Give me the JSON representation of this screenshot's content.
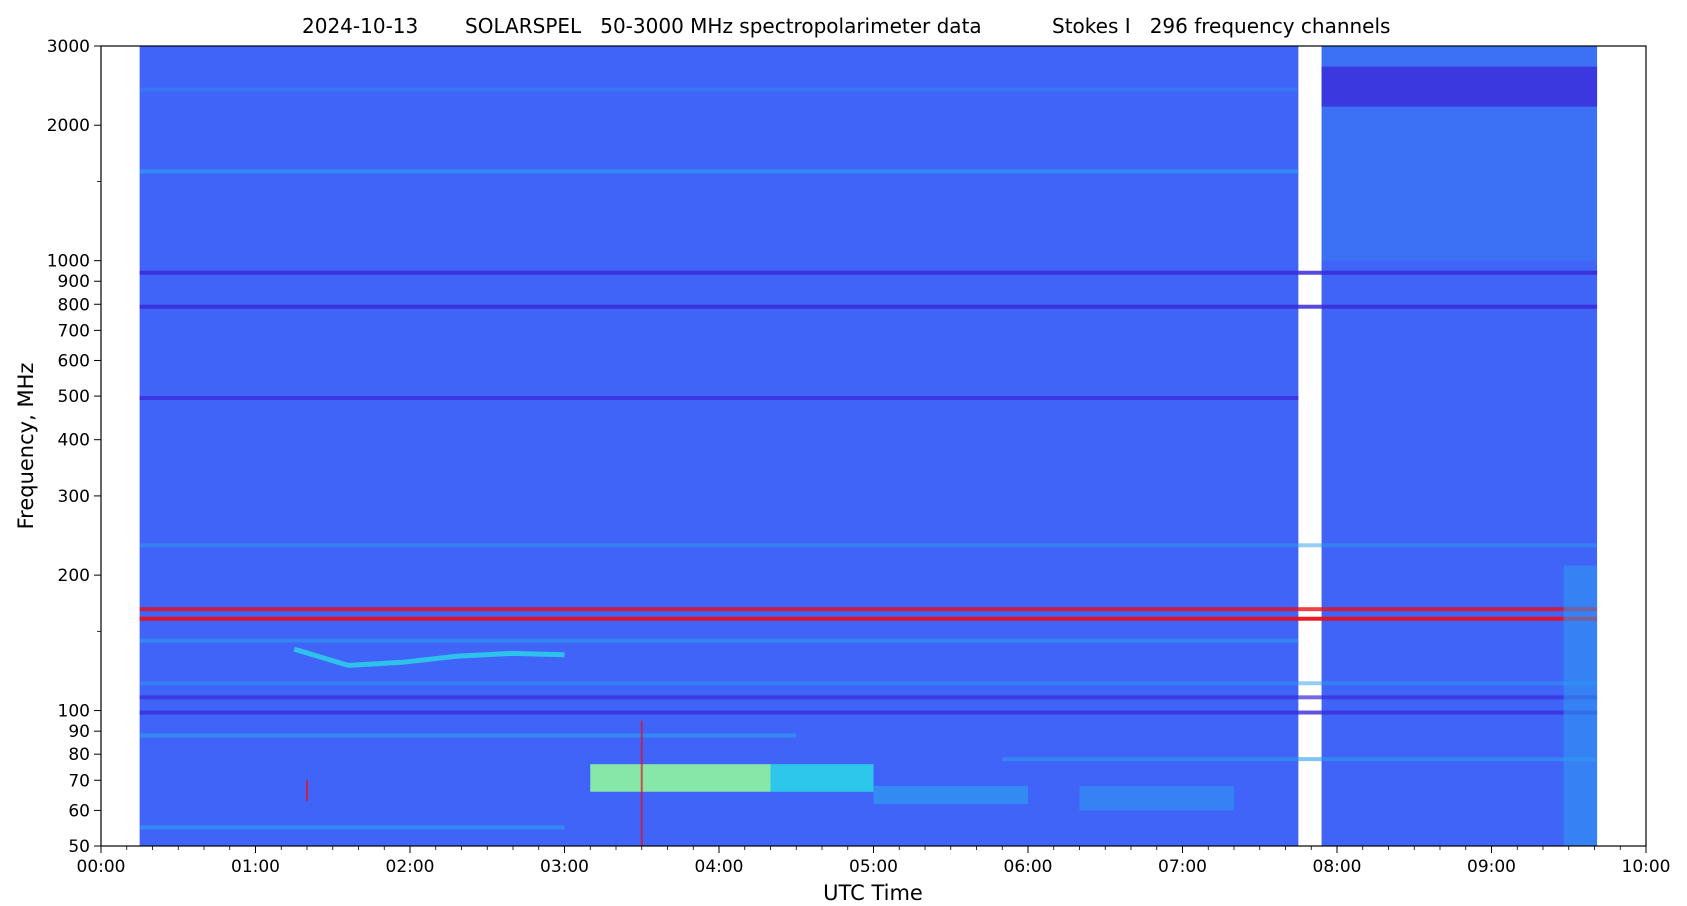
{
  "chart_data": {
    "type": "heatmap",
    "title_parts": [
      "2024-10-13",
      "SOLARSPEL   50-3000 MHz spectropolarimeter data",
      "Stokes I   296 frequency channels"
    ],
    "date": "2024-10-13",
    "instrument": "SOLARSPEL",
    "frequency_range_label": "50-3000 MHz spectropolarimeter data",
    "stokes": "Stokes I",
    "channels_label": "296 frequency channels",
    "xlabel": "UTC Time",
    "ylabel": "Frequency, MHz",
    "x_ticks": [
      "00:00",
      "01:00",
      "02:00",
      "03:00",
      "04:00",
      "05:00",
      "06:00",
      "07:00",
      "08:00",
      "09:00",
      "10:00"
    ],
    "xlim": [
      "00:00",
      "10:00"
    ],
    "y_scale": "log",
    "ylim": [
      50,
      3000
    ],
    "y_ticks": [
      50,
      60,
      70,
      80,
      90,
      100,
      200,
      300,
      400,
      500,
      600,
      700,
      800,
      900,
      1000,
      2000,
      3000
    ],
    "y_minor_ticks": [
      150,
      1500
    ],
    "data_segments": [
      {
        "start": "00:15",
        "end": "07:45"
      },
      {
        "start": "07:54",
        "end": "09:41"
      }
    ],
    "colormap": [
      "#3a2ad8",
      "#4063f8",
      "#2e9bf0",
      "#29d8e8",
      "#8ff5a0",
      "#f3f255",
      "#ff8a1a",
      "#e8101a"
    ],
    "background_level_color": "#4063f8",
    "features": [
      {
        "type": "rfi-line",
        "freq": 1580,
        "start": "00:15",
        "end": "07:45",
        "level": 2,
        "alpha": 0.7
      },
      {
        "type": "rfi-line",
        "freq": 2400,
        "start": "00:15",
        "end": "07:45",
        "level": 2,
        "alpha": 0.35
      },
      {
        "type": "rfi-line",
        "freq": 940,
        "start": "00:15",
        "end": "09:41",
        "level": 0,
        "alpha": 0.85
      },
      {
        "type": "rfi-line",
        "freq": 790,
        "start": "00:15",
        "end": "09:41",
        "level": 0,
        "alpha": 0.85
      },
      {
        "type": "rfi-line",
        "freq": 495,
        "start": "00:15",
        "end": "07:45",
        "level": 0,
        "alpha": 0.8
      },
      {
        "type": "rfi-line",
        "freq": 233,
        "start": "00:15",
        "end": "09:41",
        "level": 2,
        "alpha": 0.5
      },
      {
        "type": "rfi-line",
        "freq": 168,
        "start": "00:15",
        "end": "09:41",
        "level": 7,
        "alpha": 0.8
      },
      {
        "type": "rfi-line",
        "freq": 160,
        "start": "00:15",
        "end": "09:41",
        "level": 7,
        "alpha": 0.95
      },
      {
        "type": "rfi-line",
        "freq": 143,
        "start": "00:15",
        "end": "07:45",
        "level": 2,
        "alpha": 0.6
      },
      {
        "type": "rfi-line",
        "freq": 115,
        "start": "00:15",
        "end": "09:41",
        "level": 2,
        "alpha": 0.5
      },
      {
        "type": "rfi-line",
        "freq": 107,
        "start": "00:15",
        "end": "09:41",
        "level": 0,
        "alpha": 0.7
      },
      {
        "type": "rfi-line",
        "freq": 99,
        "start": "00:15",
        "end": "09:41",
        "level": 0,
        "alpha": 0.8
      },
      {
        "type": "rfi-line",
        "freq": 88,
        "start": "00:15",
        "end": "04:30",
        "level": 2,
        "alpha": 0.7
      },
      {
        "type": "rfi-line",
        "freq": 78,
        "start": "05:50",
        "end": "09:41",
        "level": 2,
        "alpha": 0.6
      },
      {
        "type": "rfi-line",
        "freq": 55,
        "start": "00:15",
        "end": "03:00",
        "level": 2,
        "alpha": 0.7
      },
      {
        "type": "burst",
        "f_low": 66,
        "f_high": 76,
        "start": "03:10",
        "end": "04:20",
        "level": 4,
        "alpha": 0.9
      },
      {
        "type": "burst",
        "f_low": 66,
        "f_high": 76,
        "start": "04:20",
        "end": "05:00",
        "level": 3,
        "alpha": 0.85
      },
      {
        "type": "burst",
        "f_low": 62,
        "f_high": 68,
        "start": "05:00",
        "end": "06:00",
        "level": 2,
        "alpha": 0.7
      },
      {
        "type": "burst",
        "f_low": 60,
        "f_high": 68,
        "start": "06:20",
        "end": "07:20",
        "level": 2,
        "alpha": 0.55
      },
      {
        "type": "burst",
        "f_low": 50,
        "f_high": 210,
        "start": "09:28",
        "end": "09:41",
        "level": 2,
        "alpha": 0.55
      },
      {
        "type": "burst",
        "f_low": 1000,
        "f_high": 3000,
        "start": "07:54",
        "end": "09:41",
        "level": 2,
        "alpha": 0.25
      },
      {
        "type": "burst",
        "f_low": 2200,
        "f_high": 2700,
        "start": "07:54",
        "end": "09:41",
        "level": 0,
        "alpha": 0.8
      },
      {
        "type": "drift",
        "freqs": [
          137,
          126,
          128,
          132,
          134,
          133
        ],
        "start": "01:15",
        "end": "03:00",
        "level": 3,
        "alpha": 0.8
      },
      {
        "type": "spike",
        "time": "03:30",
        "f_low": 50,
        "f_high": 95,
        "level": 7,
        "alpha": 0.7
      },
      {
        "type": "spike",
        "time": "01:20",
        "f_low": 63,
        "f_high": 70,
        "level": 7,
        "alpha": 0.8
      }
    ]
  }
}
